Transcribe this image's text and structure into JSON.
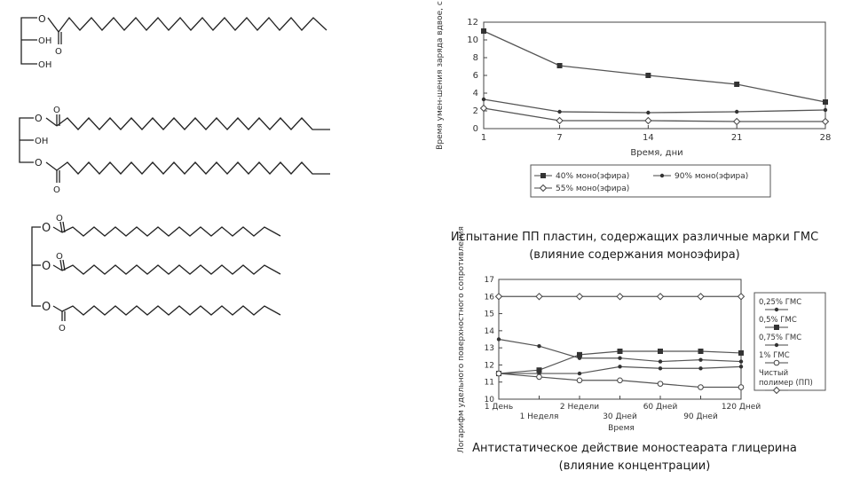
{
  "molecules": {
    "oh": "OH",
    "o": "O"
  },
  "chart1_caption": {
    "line1": "Испытание ПП пластин, содержащих различные марки ГМС",
    "line2": "(влияние содержания моноэфира)"
  },
  "chart2_caption": {
    "line1": "Антистатическое действие моностеарата глицерина",
    "line2": "(влияние концентрации)"
  },
  "chart_data": [
    {
      "type": "line",
      "xlabel": "Время, дни",
      "ylabel": "Время умен-шения заряда вдвое, с",
      "x_ticks": [
        "1",
        "7",
        "14",
        "21",
        "28"
      ],
      "y_ticks": [
        "0",
        "2",
        "4",
        "6",
        "8",
        "10",
        "12"
      ],
      "x": [
        1,
        7,
        14,
        21,
        28
      ],
      "xlim": [
        1,
        28
      ],
      "ylim": [
        0,
        12
      ],
      "grid": false,
      "legend_position": "bottom",
      "series": [
        {
          "name": "40% моно(эфира)",
          "marker": "square",
          "values": [
            11.0,
            7.1,
            6.0,
            5.0,
            3.0
          ]
        },
        {
          "name": "90% моно(эфира)",
          "marker": "dot",
          "values": [
            3.3,
            1.9,
            1.8,
            1.9,
            2.1
          ]
        },
        {
          "name": "55% моно(эфира)",
          "marker": "diamond",
          "values": [
            2.3,
            0.9,
            0.9,
            0.8,
            0.8
          ]
        }
      ]
    },
    {
      "type": "line",
      "xlabel": "Время",
      "ylabel": "Логарифм удельного поверхностного сопротивления",
      "x_ticks_upper": [
        "1 День",
        "2 Недели",
        "60 Дней",
        "120 Дней"
      ],
      "x_ticks_lower": [
        "1 Неделя",
        "30 Дней",
        "90 Дней"
      ],
      "x_categories": [
        "1 День",
        "1 Неделя",
        "2 Недели",
        "30 Дней",
        "60 Дней",
        "90 Дней",
        "120 Дней"
      ],
      "y_ticks": [
        "10",
        "11",
        "12",
        "13",
        "14",
        "15",
        "16",
        "17"
      ],
      "ylim": [
        10,
        17
      ],
      "grid": false,
      "legend_position": "right",
      "series": [
        {
          "name": "0,25% ГМС",
          "marker": "dot",
          "values": [
            13.5,
            13.1,
            12.4,
            12.4,
            12.2,
            12.3,
            12.2
          ]
        },
        {
          "name": "0,5% ГМС",
          "marker": "square",
          "values": [
            11.5,
            11.7,
            12.6,
            12.8,
            12.8,
            12.8,
            12.7
          ]
        },
        {
          "name": "0,75% ГМС",
          "marker": "dot",
          "values": [
            11.5,
            11.5,
            11.5,
            11.9,
            11.8,
            11.8,
            11.9
          ]
        },
        {
          "name": "1% ГМС",
          "marker": "circle",
          "values": [
            11.5,
            11.3,
            11.1,
            11.1,
            10.9,
            10.7,
            10.7
          ]
        },
        {
          "name": "Чистый полимер (ПП)",
          "marker": "diamond",
          "values": [
            16.0,
            16.0,
            16.0,
            16.0,
            16.0,
            16.0,
            16.0
          ]
        }
      ]
    }
  ]
}
